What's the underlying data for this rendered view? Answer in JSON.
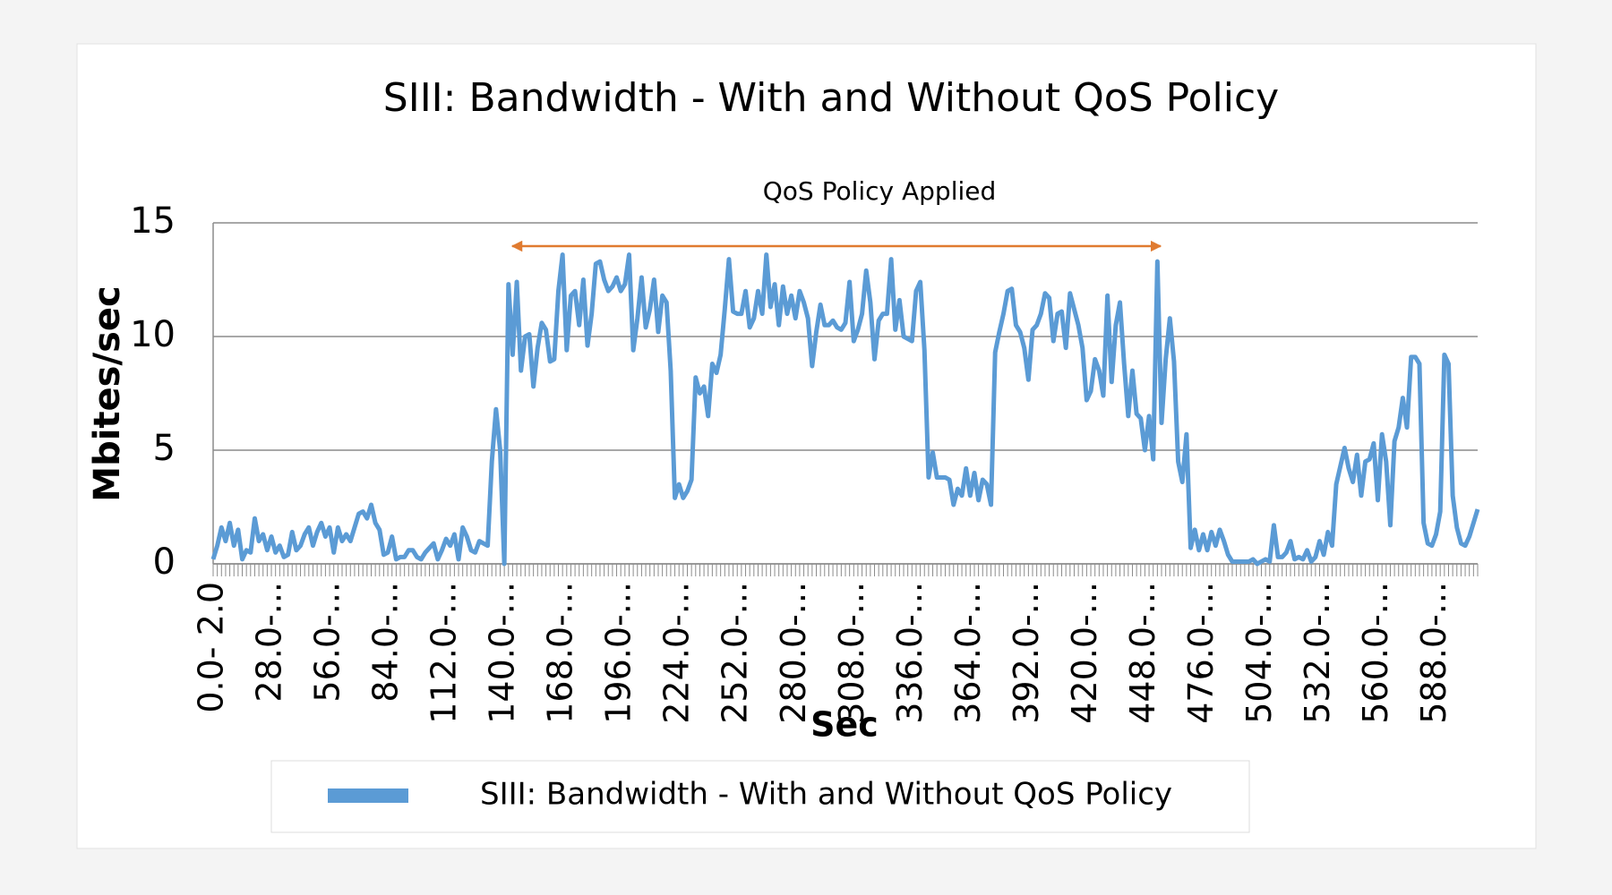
{
  "chart_data": {
    "type": "line",
    "title": "SIII: Bandwidth - With and Without QoS Policy",
    "annotation": "QoS Policy Applied",
    "x_label": "Sec",
    "y_label": "Mbites/sec",
    "ylim": [
      0,
      15
    ],
    "yticks": [
      0,
      5,
      10,
      15
    ],
    "grid": true,
    "legend": "bottom",
    "categories": [
      "0.0- 2.0",
      null,
      null,
      null,
      null,
      null,
      null,
      null,
      null,
      null,
      null,
      null,
      null,
      null,
      "28.0-...",
      null,
      null,
      null,
      null,
      null,
      null,
      null,
      null,
      null,
      null,
      null,
      null,
      null,
      "56.0-...",
      null,
      null,
      null,
      null,
      null,
      null,
      null,
      null,
      null,
      null,
      null,
      null,
      null,
      "84.0-...",
      null,
      null,
      null,
      null,
      null,
      null,
      null,
      null,
      null,
      null,
      null,
      null,
      null,
      "112.0-...",
      null,
      null,
      null,
      null,
      null,
      null,
      null,
      null,
      null,
      null,
      null,
      null,
      null,
      "140.0-...",
      null,
      null,
      null,
      null,
      null,
      null,
      null,
      null,
      null,
      null,
      null,
      null,
      null,
      "168.0-...",
      null,
      null,
      null,
      null,
      null,
      null,
      null,
      null,
      null,
      null,
      null,
      null,
      null,
      "196.0-...",
      null,
      null,
      null,
      null,
      null,
      null,
      null,
      null,
      null,
      null,
      null,
      null,
      null,
      "224.0-...",
      null,
      null,
      null,
      null,
      null,
      null,
      null,
      null,
      null,
      null,
      null,
      null,
      null,
      "252.0-...",
      null,
      null,
      null,
      null,
      null,
      null,
      null,
      null,
      null,
      null,
      null,
      null,
      null,
      "280.0-...",
      null,
      null,
      null,
      null,
      null,
      null,
      null,
      null,
      null,
      null,
      null,
      null,
      null,
      "308.0-...",
      null,
      null,
      null,
      null,
      null,
      null,
      null,
      null,
      null,
      null,
      null,
      null,
      null,
      "336.0-...",
      null,
      null,
      null,
      null,
      null,
      null,
      null,
      null,
      null,
      null,
      null,
      null,
      null,
      "364.0-...",
      null,
      null,
      null,
      null,
      null,
      null,
      null,
      null,
      null,
      null,
      null,
      null,
      null,
      "392.0-...",
      null,
      null,
      null,
      null,
      null,
      null,
      null,
      null,
      null,
      null,
      null,
      null,
      null,
      "420.0-...",
      null,
      null,
      null,
      null,
      null,
      null,
      null,
      null,
      null,
      null,
      null,
      null,
      null,
      "448.0-...",
      null,
      null,
      null,
      null,
      null,
      null,
      null,
      null,
      null,
      null,
      null,
      null,
      null,
      "476.0-...",
      null,
      null,
      null,
      null,
      null,
      null,
      null,
      null,
      null,
      null,
      null,
      null,
      null,
      "504.0-...",
      null,
      null,
      null,
      null,
      null,
      null,
      null,
      null,
      null,
      null,
      null,
      null,
      null,
      "532.0-...",
      null,
      null,
      null,
      null,
      null,
      null,
      null,
      null,
      null,
      null,
      null,
      null,
      null,
      "560.0-...",
      null,
      null,
      null,
      null,
      null,
      null,
      null,
      null,
      null,
      null,
      null,
      null,
      null,
      "588.0-...",
      null,
      null,
      null,
      null,
      null,
      null,
      null,
      null,
      null,
      null
    ],
    "series": [
      {
        "name": "SIII: Bandwidth - With and Without QoS Policy",
        "color": "#5b9bd5",
        "values": [
          0.2,
          0.8,
          1.6,
          1.0,
          1.8,
          0.8,
          1.5,
          0.2,
          0.6,
          0.5,
          2.0,
          1.0,
          1.3,
          0.6,
          1.2,
          0.5,
          0.8,
          0.3,
          0.4,
          1.4,
          0.6,
          0.8,
          1.3,
          1.6,
          0.8,
          1.4,
          1.8,
          1.2,
          1.6,
          0.5,
          1.6,
          1.0,
          1.3,
          1.0,
          1.6,
          2.2,
          2.3,
          2.0,
          2.6,
          1.8,
          1.5,
          0.4,
          0.5,
          1.2,
          0.2,
          0.3,
          0.3,
          0.6,
          0.6,
          0.3,
          0.2,
          0.5,
          0.7,
          0.9,
          0.2,
          0.6,
          1.1,
          0.8,
          1.3,
          0.2,
          1.6,
          1.2,
          0.6,
          0.5,
          1.0,
          0.9,
          0.8,
          4.5,
          6.8,
          5.0,
          0.0,
          12.3,
          9.2,
          12.4,
          8.5,
          10.0,
          10.1,
          7.8,
          9.5,
          10.6,
          10.3,
          8.9,
          9.0,
          12.0,
          13.6,
          9.4,
          11.8,
          12.0,
          10.5,
          12.5,
          9.6,
          11.0,
          13.2,
          13.3,
          12.5,
          12.0,
          12.2,
          12.6,
          12.0,
          12.3,
          13.6,
          9.4,
          10.8,
          12.6,
          10.4,
          11.2,
          12.5,
          10.2,
          11.8,
          11.5,
          8.5,
          2.9,
          3.5,
          2.9,
          3.2,
          3.7,
          8.2,
          7.5,
          7.8,
          6.5,
          8.8,
          8.4,
          9.2,
          11.2,
          13.4,
          11.1,
          11.0,
          11.0,
          12.0,
          10.4,
          10.8,
          12.0,
          11.0,
          13.6,
          11.3,
          12.3,
          10.5,
          12.2,
          11.0,
          11.8,
          10.8,
          12.0,
          11.5,
          10.8,
          8.7,
          10.2,
          11.4,
          10.5,
          10.5,
          10.7,
          10.4,
          10.3,
          10.6,
          12.4,
          9.8,
          10.3,
          11.0,
          12.9,
          11.5,
          9.0,
          10.7,
          11.0,
          11.0,
          13.4,
          10.3,
          11.6,
          10.0,
          9.9,
          9.8,
          12.0,
          12.4,
          9.4,
          3.8,
          4.9,
          3.8,
          3.8,
          3.8,
          3.7,
          2.6,
          3.3,
          3.0,
          4.2,
          3.0,
          4.0,
          2.8,
          3.7,
          3.5,
          2.6,
          9.3,
          10.2,
          11.0,
          12.0,
          12.1,
          10.5,
          10.2,
          9.5,
          8.1,
          10.3,
          10.5,
          11.0,
          11.9,
          11.7,
          9.8,
          11.0,
          11.1,
          9.5,
          11.9,
          11.2,
          10.5,
          9.5,
          7.2,
          7.6,
          9.0,
          8.5,
          7.4,
          11.8,
          8.0,
          10.5,
          11.5,
          8.8,
          6.5,
          8.5,
          6.6,
          6.4,
          5.0,
          6.5,
          4.6,
          13.3,
          6.2,
          9.0,
          10.8,
          8.9,
          4.5,
          3.6,
          5.7,
          0.7,
          1.5,
          0.6,
          1.3,
          0.6,
          1.4,
          0.8,
          1.5,
          1.0,
          0.4,
          0.1,
          0.1,
          0.1,
          0.1,
          0.1,
          0.2,
          0.0,
          0.1,
          0.2,
          0.1,
          1.7,
          0.3,
          0.3,
          0.5,
          1.0,
          0.2,
          0.3,
          0.2,
          0.6,
          0.1,
          0.3,
          1.0,
          0.4,
          1.4,
          0.8,
          3.5,
          4.3,
          5.1,
          4.2,
          3.6,
          4.8,
          3.0,
          4.5,
          4.6,
          5.3,
          2.8,
          5.7,
          4.5,
          1.7,
          5.4,
          6.0,
          7.3,
          6.0,
          9.1,
          9.1,
          8.8,
          1.8,
          0.9,
          0.8,
          1.3,
          2.3,
          9.2,
          8.8,
          3.0,
          1.6,
          0.9,
          0.8,
          1.2,
          1.8,
          2.4
        ]
      }
    ]
  }
}
